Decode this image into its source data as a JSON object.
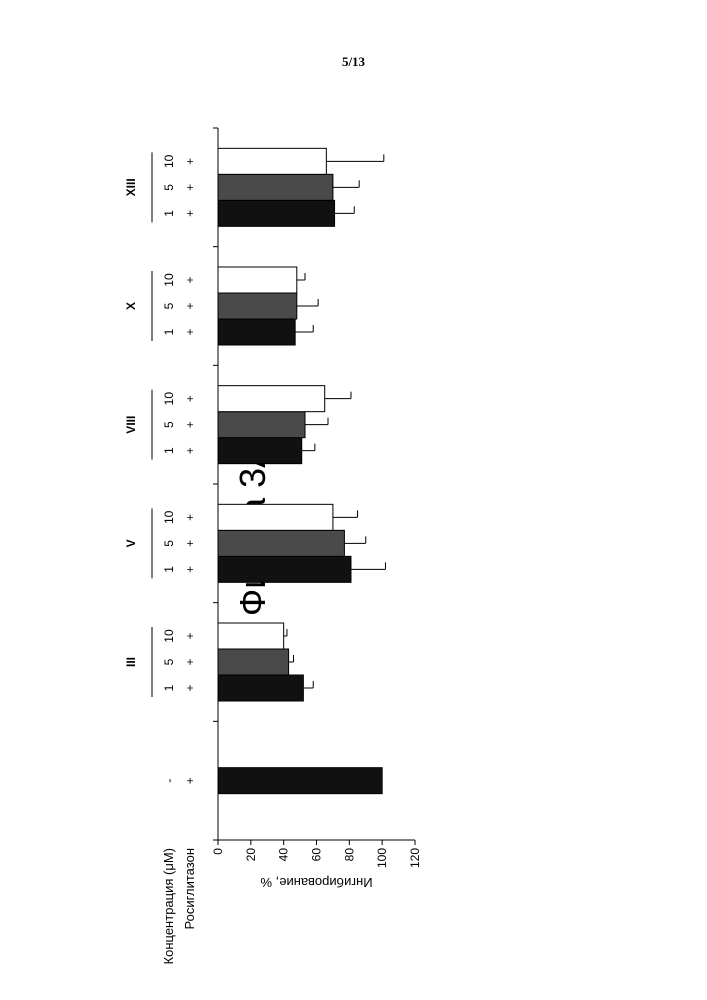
{
  "page_number": "5/13",
  "figure_title": "Фигура 3А",
  "row_labels": {
    "rosiglitazone": "Росиглитазон",
    "concentration": "Концентрация (μM)"
  },
  "colors": {
    "1": "#111111",
    "5": "#4a4a4a",
    "10": "#ffffff",
    "control": "#111111"
  },
  "chart_data": {
    "type": "bar",
    "title": "Фигура 3А",
    "xlabel": "",
    "ylabel": "Ингибирование, %",
    "ylim": [
      0,
      120
    ],
    "yticks": [
      0,
      20,
      40,
      60,
      80,
      100,
      120
    ],
    "groups": [
      {
        "label": "",
        "bars": [
          {
            "conc": "-",
            "rosi": "+",
            "value": 100,
            "err": null
          }
        ]
      },
      {
        "label": "III",
        "bars": [
          {
            "conc": "1",
            "rosi": "+",
            "value": 52,
            "err": 6
          },
          {
            "conc": "5",
            "rosi": "+",
            "value": 43,
            "err": 3
          },
          {
            "conc": "10",
            "rosi": "+",
            "value": 40,
            "err": 2
          }
        ]
      },
      {
        "label": "V",
        "bars": [
          {
            "conc": "1",
            "rosi": "+",
            "value": 81,
            "err": 21
          },
          {
            "conc": "5",
            "rosi": "+",
            "value": 77,
            "err": 13
          },
          {
            "conc": "10",
            "rosi": "+",
            "value": 70,
            "err": 15
          }
        ]
      },
      {
        "label": "VIII",
        "bars": [
          {
            "conc": "1",
            "rosi": "+",
            "value": 51,
            "err": 8
          },
          {
            "conc": "5",
            "rosi": "+",
            "value": 53,
            "err": 14
          },
          {
            "conc": "10",
            "rosi": "+",
            "value": 65,
            "err": 16
          }
        ]
      },
      {
        "label": "X",
        "bars": [
          {
            "conc": "1",
            "rosi": "+",
            "value": 47,
            "err": 11
          },
          {
            "conc": "5",
            "rosi": "+",
            "value": 48,
            "err": 13
          },
          {
            "conc": "10",
            "rosi": "+",
            "value": 48,
            "err": 5
          }
        ]
      },
      {
        "label": "XIII",
        "bars": [
          {
            "conc": "1",
            "rosi": "+",
            "value": 71,
            "err": 12
          },
          {
            "conc": "5",
            "rosi": "+",
            "value": 70,
            "err": 16
          },
          {
            "conc": "10",
            "rosi": "+",
            "value": 66,
            "err": 35
          }
        ]
      }
    ]
  }
}
